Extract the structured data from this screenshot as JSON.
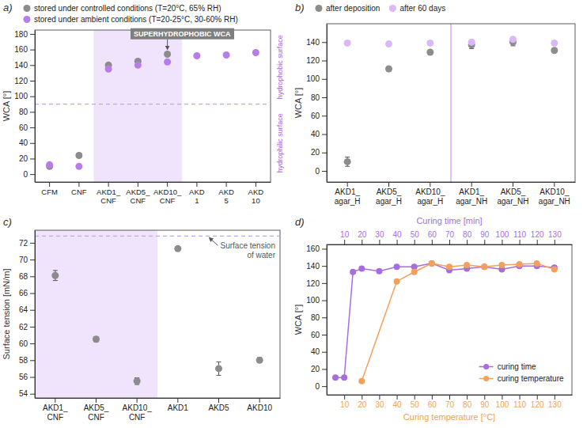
{
  "chart_data": [
    {
      "type": "scatter",
      "title": "a)",
      "categories": [
        "CFM",
        "CNF",
        "AKD1_CNF",
        "AKD5_CNF",
        "AKD10_CNF",
        "AKD 1",
        "AKD 5",
        "AKD 10"
      ],
      "y_label": "WCA [°]",
      "ylim": [
        -10,
        185
      ],
      "yticks": [
        0,
        20,
        40,
        60,
        80,
        100,
        120,
        140,
        160,
        180
      ],
      "grid": false,
      "legend": "top",
      "series": [
        {
          "name": "stored under controlled conditions (T=20°C, 65% RH)",
          "color": "#8c8c8c",
          "marker": "circle",
          "values": [
            10,
            24,
            140,
            145,
            154,
            null,
            null,
            null
          ]
        },
        {
          "name": "stored under ambient conditions (T=20-25°C, 30-60% RH)",
          "color": "#b57ee8",
          "marker": "circle",
          "values": [
            12,
            10,
            135,
            140,
            144,
            152,
            153,
            156
          ]
        }
      ],
      "reference_line": 90,
      "region_labels": [
        "hydrophobic surface",
        "hydrophilic surface"
      ],
      "shaded_categories": [
        "AKD1_CNF",
        "AKD5_CNF",
        "AKD10_CNF"
      ],
      "annotations": [
        {
          "text": "SUPERHYDROPHOBIC WCA",
          "category": "AKD10_CNF",
          "value": 154
        }
      ]
    },
    {
      "type": "scatter",
      "title": "b)",
      "categories": [
        "AKD1_agar_H",
        "AKD5_agar_H",
        "AKD10_agar_H",
        "AKD1_agar_NH",
        "AKD5_agar_NH",
        "AKD10_agar_NH"
      ],
      "y_label": "WCA [°]",
      "ylim": [
        -12,
        160
      ],
      "yticks": [
        0,
        20,
        40,
        60,
        80,
        100,
        120,
        140
      ],
      "grid": false,
      "legend": "top",
      "series": [
        {
          "name": "after deposition",
          "color": "#8c8c8c",
          "marker": "circle",
          "values": [
            10,
            111,
            129,
            137,
            140,
            131
          ],
          "errors": [
            5,
            2,
            2,
            4,
            4,
            2
          ]
        },
        {
          "name": "after 60 days",
          "color": "#d9b8f5",
          "marker": "circle",
          "values": [
            139,
            138,
            139,
            140,
            143,
            139
          ],
          "errors": [
            2,
            2,
            2,
            2,
            2,
            2
          ]
        }
      ]
    },
    {
      "type": "scatter",
      "title": "c)",
      "categories": [
        "AKD1_CNF",
        "AKD5_CNF",
        "AKD10_CNF",
        "AKD1",
        "AKD5",
        "AKD10"
      ],
      "y_label": "Surface tension [mN/m]",
      "ylim": [
        53.5,
        73.5
      ],
      "yticks": [
        54,
        56,
        58,
        60,
        62,
        64,
        66,
        68,
        70,
        72
      ],
      "grid": false,
      "color": "#8c8c8c",
      "marker": "circle",
      "values": [
        68.1,
        60.5,
        55.5,
        71.3,
        57.0,
        58.0
      ],
      "errors": [
        0.6,
        0.3,
        0.4,
        0.1,
        0.8,
        0.3
      ],
      "reference_line": 72.8,
      "shaded_categories": [
        "AKD1_CNF",
        "AKD5_CNF",
        "AKD10_CNF"
      ],
      "annotations": [
        {
          "text": "Surface tension of water"
        }
      ]
    },
    {
      "type": "line",
      "title": "d)",
      "x_label": "Curing temperature [°C]",
      "x2_label": "Curing time [min]",
      "y_label": "WCA [°]",
      "xlim": [
        0,
        140
      ],
      "xticks": [
        10,
        20,
        30,
        40,
        50,
        60,
        70,
        80,
        90,
        100,
        110,
        120,
        130
      ],
      "x2lim": [
        0,
        140
      ],
      "x2ticks": [
        10,
        20,
        30,
        40,
        50,
        60,
        70,
        80,
        90,
        100,
        110,
        120,
        130
      ],
      "ylim": [
        -10,
        165
      ],
      "yticks": [
        0,
        20,
        40,
        60,
        80,
        100,
        120,
        140,
        160
      ],
      "grid": false,
      "legend": "lower right",
      "series": [
        {
          "name": "curing time",
          "color": "#a56de0",
          "marker": "circle",
          "axis": "x2",
          "x": [
            5,
            10,
            15,
            20,
            30,
            40,
            50,
            60,
            70,
            80,
            90,
            100,
            110,
            120,
            130
          ],
          "values": [
            10,
            10,
            133,
            137,
            134,
            139,
            139,
            143,
            135,
            137,
            139,
            136,
            140,
            140,
            138
          ]
        },
        {
          "name": "curing temperature",
          "color": "#f5a05a",
          "marker": "circle",
          "x": [
            20,
            40,
            50,
            60,
            70,
            80,
            90,
            100,
            110,
            120,
            130
          ],
          "values": [
            6,
            122,
            133,
            143,
            139,
            141,
            139,
            141,
            142,
            143,
            136
          ]
        }
      ]
    }
  ]
}
